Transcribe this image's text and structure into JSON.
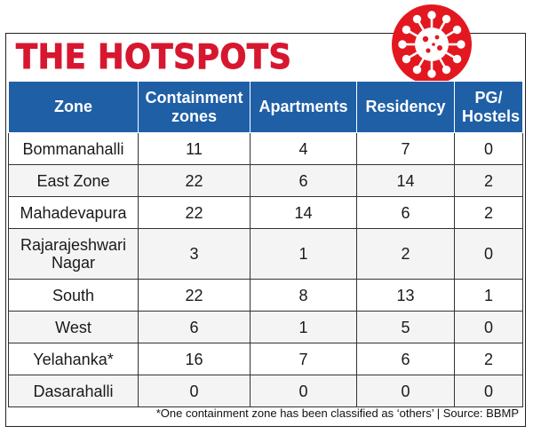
{
  "title": "THE HOTSPOTS",
  "icon": "coronavirus-icon",
  "colors": {
    "title": "#d7172f",
    "header_bg": "#1f5fa6",
    "virus_bg": "#e3171f"
  },
  "footnote": "*One containment zone has been classified as ‘others’ | Source: BBMP",
  "chart_data": {
    "type": "table",
    "columns": [
      "Zone",
      "Containment zones",
      "Apartments",
      "Residency",
      "PG/ Hostels"
    ],
    "rows": [
      {
        "zone": "Bommanahalli",
        "values": [
          "11",
          "4",
          "7",
          "0"
        ]
      },
      {
        "zone": "East Zone",
        "values": [
          "22",
          "6",
          "14",
          "2"
        ]
      },
      {
        "zone": "Mahadevapura",
        "values": [
          "22",
          "14",
          "6",
          "2"
        ]
      },
      {
        "zone": "Rajarajeshwari Nagar",
        "values": [
          "3",
          "1",
          "2",
          "0"
        ]
      },
      {
        "zone": "South",
        "values": [
          "22",
          "8",
          "13",
          "1"
        ]
      },
      {
        "zone": "West",
        "values": [
          "6",
          "1",
          "5",
          "0"
        ]
      },
      {
        "zone": "Yelahanka*",
        "values": [
          "16",
          "7",
          "6",
          "2"
        ]
      },
      {
        "zone": "Dasarahalli",
        "values": [
          "0",
          "0",
          "0",
          "0"
        ]
      }
    ]
  }
}
